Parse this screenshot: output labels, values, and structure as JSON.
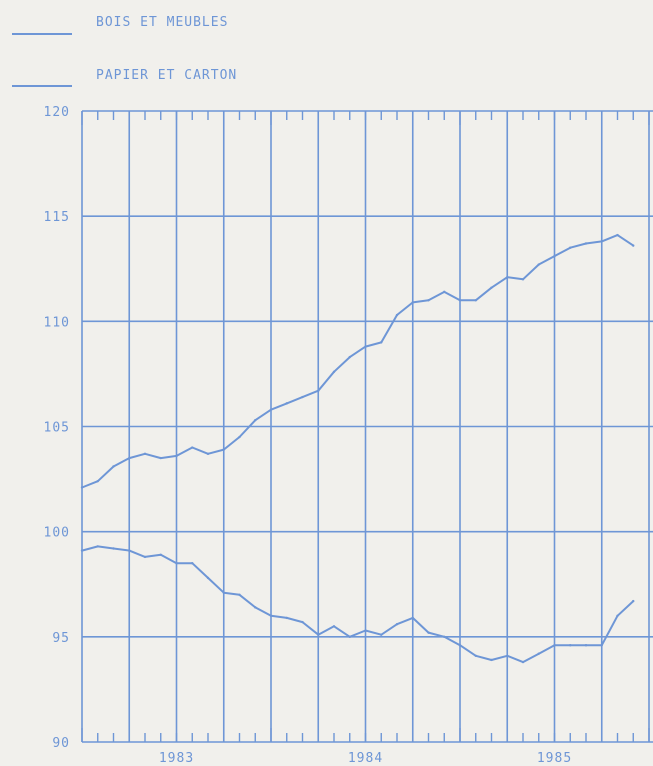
{
  "colors": {
    "ink": "#6e96d6",
    "background": "#f1f0ec"
  },
  "chart_data": {
    "type": "line",
    "title": "",
    "xlabel": "",
    "ylabel": "",
    "grid": true,
    "legend_position": "top-left",
    "ylim": [
      90,
      120
    ],
    "y_ticks": [
      90,
      95,
      100,
      105,
      110,
      115,
      120
    ],
    "year_labels": [
      "1983",
      "1984",
      "1985"
    ],
    "x": [
      "1983-01",
      "1983-02",
      "1983-03",
      "1983-04",
      "1983-05",
      "1983-06",
      "1983-07",
      "1983-08",
      "1983-09",
      "1983-10",
      "1983-11",
      "1983-12",
      "1984-01",
      "1984-02",
      "1984-03",
      "1984-04",
      "1984-05",
      "1984-06",
      "1984-07",
      "1984-08",
      "1984-09",
      "1984-10",
      "1984-11",
      "1984-12",
      "1985-01",
      "1985-02",
      "1985-03",
      "1985-04",
      "1985-05",
      "1985-06",
      "1985-07",
      "1985-08",
      "1985-09",
      "1985-10",
      "1985-11",
      "1985-12"
    ],
    "series": [
      {
        "name": "BOIS ET MEUBLES",
        "values": [
          102.1,
          102.4,
          103.1,
          103.5,
          103.7,
          103.5,
          103.6,
          104.0,
          103.7,
          103.9,
          104.5,
          105.3,
          105.8,
          106.1,
          106.4,
          106.7,
          107.6,
          108.3,
          108.8,
          109.0,
          110.3,
          110.9,
          111.0,
          111.4,
          111.0,
          111.0,
          111.6,
          112.1,
          112.0,
          112.7,
          113.1,
          113.5,
          113.7,
          113.8,
          114.1,
          113.6
        ]
      },
      {
        "name": "PAPIER ET CARTON",
        "values": [
          99.1,
          99.3,
          99.2,
          99.1,
          98.8,
          98.9,
          98.5,
          98.5,
          97.8,
          97.1,
          97.0,
          96.4,
          96.0,
          95.9,
          95.7,
          95.1,
          95.5,
          95.0,
          95.3,
          95.1,
          95.6,
          95.9,
          95.2,
          95.0,
          94.6,
          94.1,
          93.9,
          94.1,
          93.8,
          94.2,
          94.6,
          94.6,
          94.6,
          94.6,
          96.0,
          96.7
        ]
      }
    ]
  }
}
